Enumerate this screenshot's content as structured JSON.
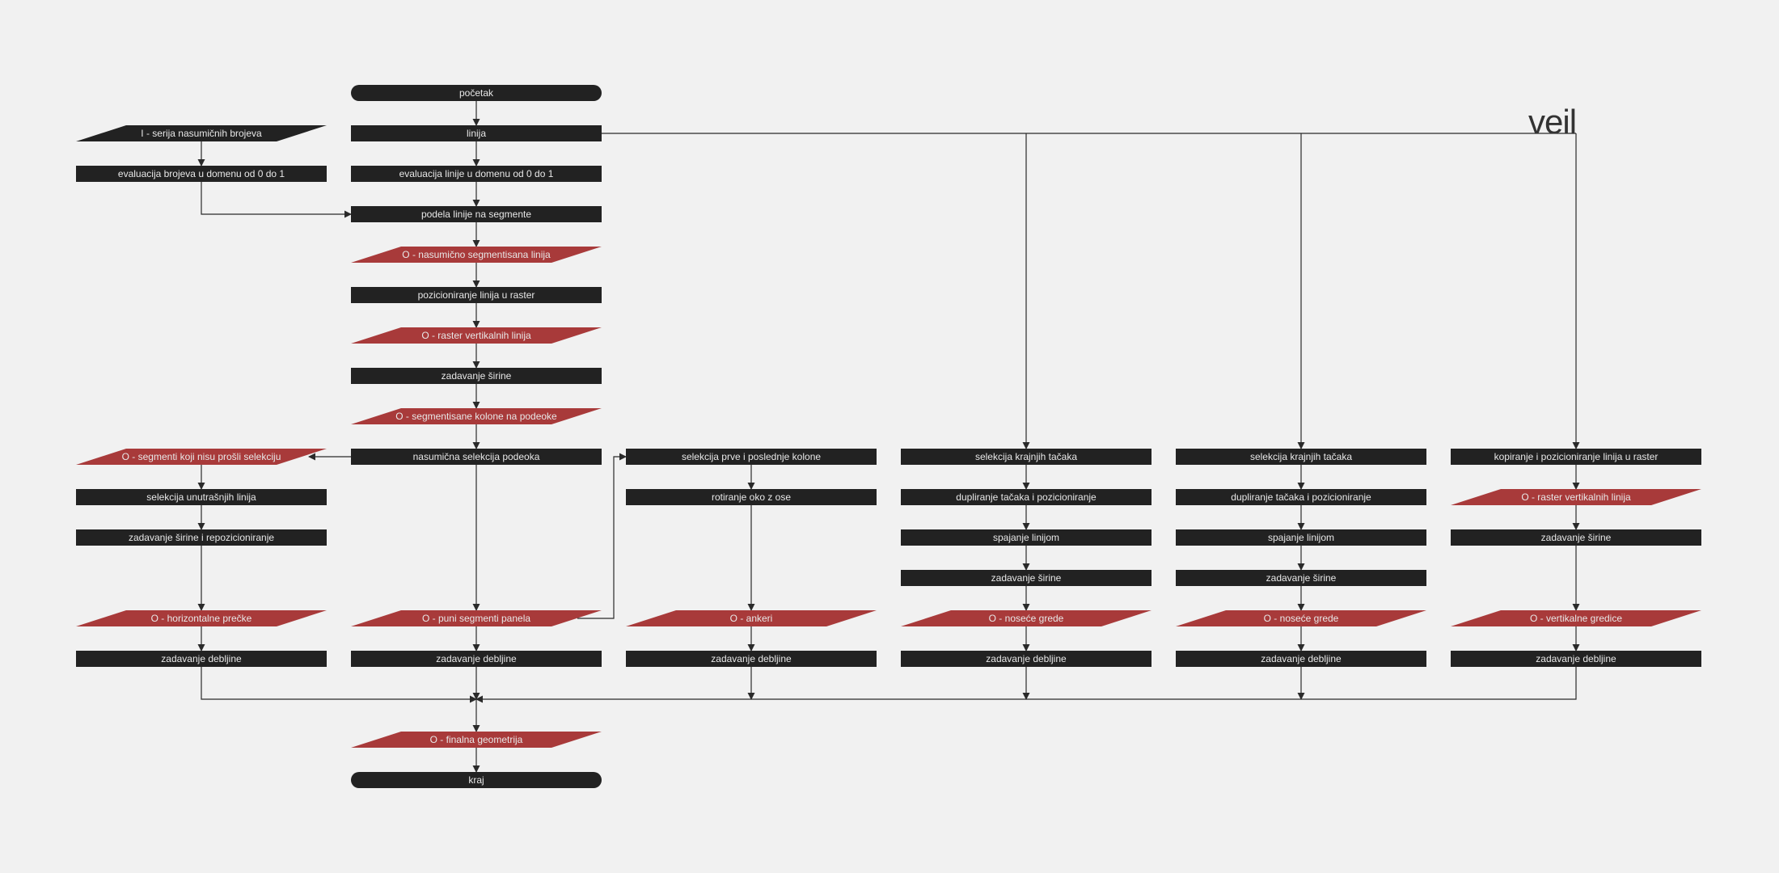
{
  "diagram": {
    "title": "veil",
    "colors": {
      "background": "#f1f1f1",
      "process": "#222222",
      "terminal": "#222222",
      "output": "#a83a3a",
      "input": "#222222",
      "text": "#e8e8e8",
      "edge": "#2a2a2a"
    },
    "nodes": [
      {
        "id": "start",
        "type": "terminal",
        "label": "početak"
      },
      {
        "id": "in_random",
        "type": "input",
        "label": "I - serija nasumičnih brojeva"
      },
      {
        "id": "linija",
        "type": "process",
        "label": "linija"
      },
      {
        "id": "eval_brojeva",
        "type": "process",
        "label": "evaluacija brojeva u domenu od 0 do 1"
      },
      {
        "id": "eval_linije",
        "type": "process",
        "label": "evaluacija linije u domenu od 0 do 1"
      },
      {
        "id": "podela",
        "type": "process",
        "label": "podela linije na segmente"
      },
      {
        "id": "o_nasumicno",
        "type": "output",
        "label": "O - nasumično segmentisana linija"
      },
      {
        "id": "pozicioniranje",
        "type": "process",
        "label": "pozicioniranje linija u raster"
      },
      {
        "id": "o_raster1",
        "type": "output",
        "label": "O - raster vertikalnih linija"
      },
      {
        "id": "sirina1",
        "type": "process",
        "label": "zadavanje širine"
      },
      {
        "id": "o_kolone",
        "type": "output",
        "label": "O - segmentisane kolone na podeoke"
      },
      {
        "id": "o_segmenti_nisu",
        "type": "output",
        "label": "O - segmenti koji nisu prošli selekciju"
      },
      {
        "id": "nasumicna_sel",
        "type": "process",
        "label": "nasumična selekcija podeoka"
      },
      {
        "id": "sel_prve",
        "type": "process",
        "label": "selekcija prve i poslednje kolone"
      },
      {
        "id": "sel_kraj1",
        "type": "process",
        "label": "selekcija krajnjih tačaka"
      },
      {
        "id": "sel_kraj2",
        "type": "process",
        "label": "selekcija krajnjih tačaka"
      },
      {
        "id": "kopiranje",
        "type": "process",
        "label": "kopiranje i pozicioniranje linija u raster"
      },
      {
        "id": "sel_unutr",
        "type": "process",
        "label": "selekcija unutrašnjih linija"
      },
      {
        "id": "rotiranje",
        "type": "process",
        "label": "rotiranje oko z ose"
      },
      {
        "id": "dupl1",
        "type": "process",
        "label": "dupliranje tačaka i pozicioniranje"
      },
      {
        "id": "dupl2",
        "type": "process",
        "label": "dupliranje tačaka i pozicioniranje"
      },
      {
        "id": "o_raster2",
        "type": "output",
        "label": "O - raster vertikalnih linija"
      },
      {
        "id": "sirina_repoz",
        "type": "process",
        "label": "zadavanje širine i repozicioniranje"
      },
      {
        "id": "spajanje1",
        "type": "process",
        "label": "spajanje linijom"
      },
      {
        "id": "spajanje2",
        "type": "process",
        "label": "spajanje linijom"
      },
      {
        "id": "sirina5",
        "type": "process",
        "label": "zadavanje širine"
      },
      {
        "id": "sirina3",
        "type": "process",
        "label": "zadavanje širine"
      },
      {
        "id": "sirina4",
        "type": "process",
        "label": "zadavanje širine"
      },
      {
        "id": "o_horiz",
        "type": "output",
        "label": "O - horizontalne prečke"
      },
      {
        "id": "o_puni",
        "type": "output",
        "label": "O - puni segmenti panela"
      },
      {
        "id": "o_ankeri",
        "type": "output",
        "label": "O - ankeri"
      },
      {
        "id": "o_nosece1",
        "type": "output",
        "label": "O - noseće grede"
      },
      {
        "id": "o_nosece2",
        "type": "output",
        "label": "O - noseće grede"
      },
      {
        "id": "o_vert_gred",
        "type": "output",
        "label": "O - vertikalne gredice"
      },
      {
        "id": "deb1",
        "type": "process",
        "label": "zadavanje debljine"
      },
      {
        "id": "deb2",
        "type": "process",
        "label": "zadavanje debljine"
      },
      {
        "id": "deb3",
        "type": "process",
        "label": "zadavanje debljine"
      },
      {
        "id": "deb4",
        "type": "process",
        "label": "zadavanje debljine"
      },
      {
        "id": "deb5",
        "type": "process",
        "label": "zadavanje debljine"
      },
      {
        "id": "deb6",
        "type": "process",
        "label": "zadavanje debljine"
      },
      {
        "id": "o_finalna",
        "type": "output",
        "label": "O - finalna geometrija"
      },
      {
        "id": "end",
        "type": "terminal",
        "label": "kraj"
      }
    ]
  }
}
